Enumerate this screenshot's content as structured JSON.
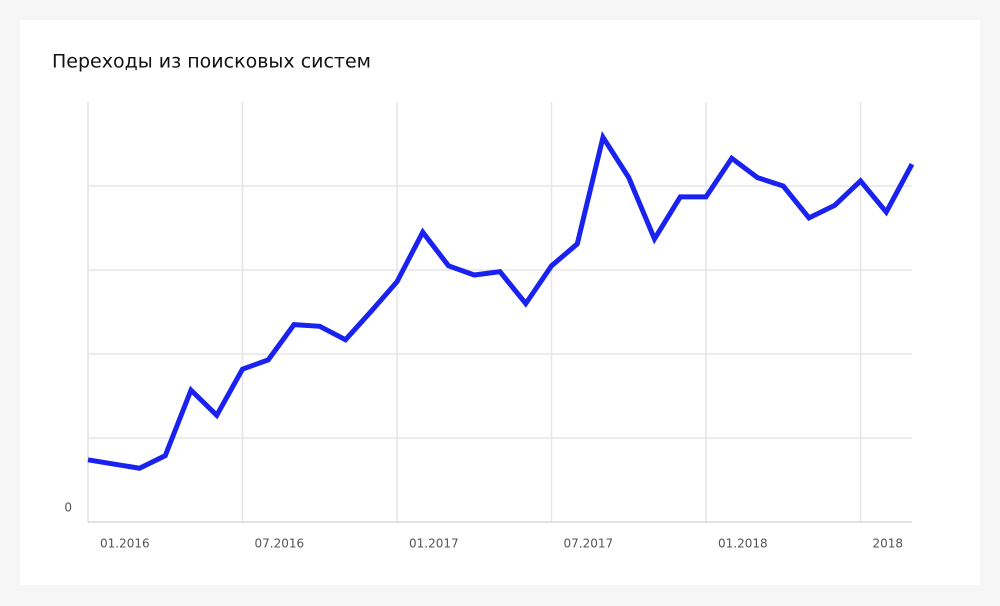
{
  "chart_data": {
    "type": "line",
    "title": "Переходы из поисковых систем",
    "categories": [
      "01.2016",
      null,
      null,
      null,
      null,
      null,
      "07.2016",
      null,
      null,
      null,
      null,
      null,
      "01.2017",
      null,
      null,
      null,
      null,
      null,
      "07.2017",
      null,
      null,
      null,
      null,
      null,
      "01.2018",
      null,
      null,
      null,
      null,
      null,
      "2018",
      null,
      null
    ],
    "series": [
      {
        "name": null,
        "color": "#1a22f0",
        "values": [
          0.74,
          0.69,
          0.64,
          0.79,
          1.57,
          1.27,
          1.82,
          1.93,
          2.35,
          2.33,
          2.17,
          2.51,
          2.86,
          3.45,
          3.05,
          2.94,
          2.98,
          2.6,
          3.05,
          3.31,
          4.58,
          4.1,
          3.37,
          3.87,
          3.87,
          4.33,
          4.1,
          4.0,
          3.62,
          3.77,
          4.06,
          3.69,
          4.26
        ]
      }
    ],
    "ylim": [
      0,
      5
    ],
    "yticks": [
      0
    ],
    "gridlines": [
      1,
      2,
      3,
      4
    ],
    "grid": true
  }
}
